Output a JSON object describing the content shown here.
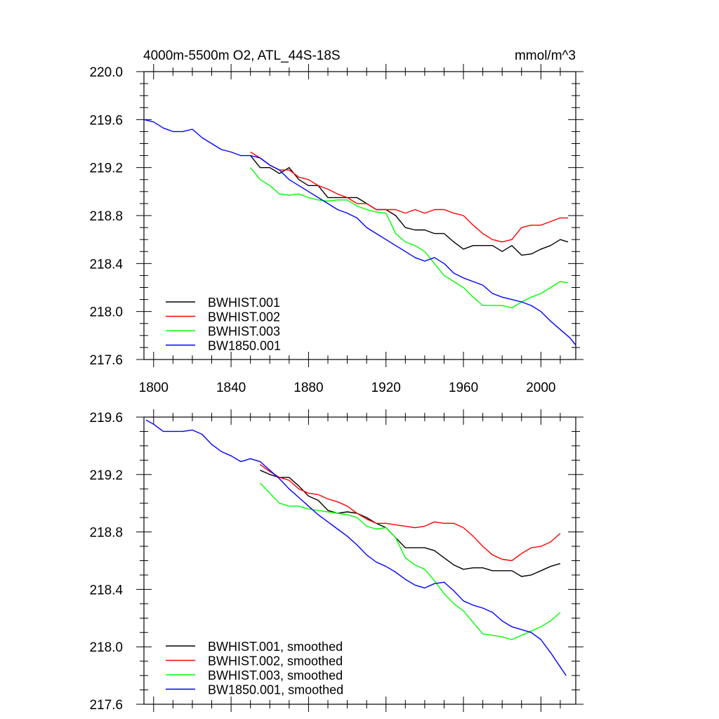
{
  "chart_data": [
    {
      "type": "line",
      "title": "4000m-5500m O2, ATL_44S-18S",
      "units": "mmol/m^3",
      "xlim": [
        1795,
        2018
      ],
      "ylim": [
        217.6,
        220.0
      ],
      "xticks": [
        "1800",
        "1840",
        "1880",
        "1920",
        "1960",
        "2000"
      ],
      "yticks": [
        "220.0",
        "219.6",
        "219.2",
        "218.8",
        "218.4",
        "218.0",
        "217.6"
      ],
      "legend_position": "bottom-left",
      "series": [
        {
          "name": "BWHIST.001",
          "color": "#000000",
          "x": [
            1850,
            1855,
            1860,
            1865,
            1870,
            1875,
            1880,
            1885,
            1890,
            1895,
            1900,
            1905,
            1910,
            1915,
            1920,
            1925,
            1930,
            1935,
            1940,
            1945,
            1950,
            1955,
            1960,
            1965,
            1970,
            1975,
            1980,
            1985,
            1990,
            1995,
            2000,
            2005,
            2010,
            2014
          ],
          "y": [
            219.3,
            219.2,
            219.2,
            219.15,
            219.2,
            219.1,
            219.05,
            219.05,
            218.95,
            218.95,
            218.95,
            218.95,
            218.9,
            218.85,
            218.85,
            218.8,
            218.7,
            218.68,
            218.68,
            218.65,
            218.65,
            218.58,
            218.52,
            218.55,
            218.55,
            218.55,
            218.5,
            218.55,
            218.47,
            218.48,
            218.52,
            218.55,
            218.6,
            218.58
          ]
        },
        {
          "name": "BWHIST.002",
          "color": "#ff0000",
          "x": [
            1850,
            1855,
            1860,
            1865,
            1870,
            1875,
            1880,
            1885,
            1890,
            1895,
            1900,
            1905,
            1910,
            1915,
            1920,
            1925,
            1930,
            1935,
            1940,
            1945,
            1950,
            1955,
            1960,
            1965,
            1970,
            1975,
            1980,
            1985,
            1990,
            1995,
            2000,
            2005,
            2010,
            2014
          ],
          "y": [
            219.33,
            219.28,
            219.22,
            219.18,
            219.18,
            219.12,
            219.1,
            219.05,
            219.02,
            218.98,
            218.95,
            218.9,
            218.9,
            218.85,
            218.85,
            218.85,
            218.82,
            218.85,
            218.82,
            218.85,
            218.85,
            218.82,
            218.8,
            218.72,
            218.65,
            218.6,
            218.58,
            218.6,
            218.7,
            218.72,
            218.72,
            218.75,
            218.78,
            218.78
          ]
        },
        {
          "name": "BWHIST.003",
          "color": "#00ff00",
          "x": [
            1850,
            1855,
            1860,
            1865,
            1870,
            1875,
            1880,
            1885,
            1890,
            1895,
            1900,
            1905,
            1910,
            1915,
            1920,
            1925,
            1930,
            1935,
            1940,
            1945,
            1950,
            1955,
            1960,
            1965,
            1970,
            1975,
            1980,
            1985,
            1990,
            1995,
            2000,
            2005,
            2010,
            2014
          ],
          "y": [
            219.2,
            219.1,
            219.05,
            218.98,
            218.97,
            218.98,
            218.95,
            218.93,
            218.92,
            218.93,
            218.93,
            218.88,
            218.85,
            218.83,
            218.82,
            218.65,
            218.58,
            218.55,
            218.5,
            218.4,
            218.3,
            218.25,
            218.2,
            218.12,
            218.05,
            218.05,
            218.05,
            218.03,
            218.08,
            218.12,
            218.15,
            218.2,
            218.25,
            218.24
          ]
        },
        {
          "name": "BW1850.001",
          "color": "#0000ff",
          "x": [
            1795,
            1800,
            1805,
            1810,
            1815,
            1820,
            1825,
            1830,
            1835,
            1840,
            1845,
            1850,
            1855,
            1860,
            1865,
            1870,
            1875,
            1880,
            1885,
            1890,
            1895,
            1900,
            1905,
            1910,
            1915,
            1920,
            1925,
            1930,
            1935,
            1940,
            1945,
            1950,
            1955,
            1960,
            1965,
            1970,
            1975,
            1980,
            1985,
            1990,
            1995,
            2000,
            2005,
            2010,
            2015,
            2018
          ],
          "y": [
            219.6,
            219.58,
            219.53,
            219.5,
            219.5,
            219.52,
            219.45,
            219.4,
            219.35,
            219.33,
            219.3,
            219.3,
            219.28,
            219.22,
            219.18,
            219.1,
            219.05,
            219.0,
            218.95,
            218.9,
            218.85,
            218.82,
            218.78,
            218.7,
            218.65,
            218.6,
            218.55,
            218.5,
            218.45,
            218.42,
            218.45,
            218.4,
            218.32,
            218.28,
            218.25,
            218.22,
            218.15,
            218.12,
            218.1,
            218.08,
            218.05,
            218.0,
            217.92,
            217.85,
            217.78,
            217.72
          ]
        }
      ]
    },
    {
      "type": "line",
      "xlim": [
        1795,
        2018
      ],
      "ylim": [
        217.6,
        219.6
      ],
      "yticks": [
        "219.6",
        "219.2",
        "218.8",
        "218.4",
        "218.0",
        "217.6"
      ],
      "legend_position": "bottom-left",
      "series": [
        {
          "name": "BWHIST.001, smoothed",
          "color": "#000000",
          "x": [
            1855,
            1860,
            1865,
            1870,
            1875,
            1880,
            1885,
            1890,
            1895,
            1900,
            1905,
            1910,
            1915,
            1920,
            1925,
            1930,
            1935,
            1940,
            1945,
            1950,
            1955,
            1960,
            1965,
            1970,
            1975,
            1980,
            1985,
            1990,
            1995,
            2000,
            2005,
            2010
          ],
          "y": [
            219.23,
            219.2,
            219.18,
            219.18,
            219.12,
            219.05,
            219.02,
            218.95,
            218.93,
            218.94,
            218.93,
            218.9,
            218.86,
            218.83,
            218.76,
            218.69,
            218.69,
            218.69,
            218.67,
            218.62,
            218.57,
            218.54,
            218.55,
            218.55,
            218.53,
            218.53,
            218.53,
            218.49,
            218.5,
            218.53,
            218.56,
            218.58
          ]
        },
        {
          "name": "BWHIST.002, smoothed",
          "color": "#ff0000",
          "x": [
            1855,
            1860,
            1865,
            1870,
            1875,
            1880,
            1885,
            1890,
            1895,
            1900,
            1905,
            1910,
            1915,
            1920,
            1925,
            1930,
            1935,
            1940,
            1945,
            1950,
            1955,
            1960,
            1965,
            1970,
            1975,
            1980,
            1985,
            1990,
            1995,
            2000,
            2005,
            2010
          ],
          "y": [
            219.27,
            219.22,
            219.18,
            219.16,
            219.1,
            219.07,
            219.06,
            219.03,
            219.01,
            218.98,
            218.93,
            218.89,
            218.86,
            218.86,
            218.85,
            218.84,
            218.83,
            218.84,
            218.87,
            218.86,
            218.86,
            218.83,
            218.77,
            218.7,
            218.64,
            218.61,
            218.6,
            218.65,
            218.69,
            218.7,
            218.73,
            218.79
          ]
        },
        {
          "name": "BWHIST.003, smoothed",
          "color": "#00ff00",
          "x": [
            1855,
            1860,
            1865,
            1870,
            1875,
            1880,
            1885,
            1890,
            1895,
            1900,
            1905,
            1910,
            1915,
            1920,
            1925,
            1930,
            1935,
            1940,
            1945,
            1950,
            1955,
            1960,
            1965,
            1970,
            1975,
            1980,
            1985,
            1990,
            1995,
            2000,
            2005,
            2010
          ],
          "y": [
            219.14,
            219.07,
            219.0,
            218.98,
            218.98,
            218.96,
            218.95,
            218.94,
            218.93,
            218.92,
            218.9,
            218.84,
            218.82,
            218.83,
            218.76,
            218.62,
            218.57,
            218.54,
            218.46,
            218.37,
            218.3,
            218.25,
            218.17,
            218.09,
            218.08,
            218.07,
            218.05,
            218.08,
            218.11,
            218.14,
            218.18,
            218.24
          ]
        },
        {
          "name": "BW1850.001, smoothed",
          "color": "#0000ff",
          "x": [
            1796,
            1800,
            1805,
            1810,
            1815,
            1820,
            1825,
            1830,
            1835,
            1840,
            1845,
            1850,
            1855,
            1860,
            1865,
            1870,
            1875,
            1880,
            1885,
            1890,
            1895,
            1900,
            1905,
            1910,
            1915,
            1920,
            1925,
            1930,
            1935,
            1940,
            1945,
            1950,
            1955,
            1960,
            1965,
            1970,
            1975,
            1980,
            1985,
            1990,
            1995,
            2000,
            2005,
            2010,
            2013
          ],
          "y": [
            219.58,
            219.55,
            219.5,
            219.5,
            219.5,
            219.51,
            219.48,
            219.41,
            219.36,
            219.33,
            219.29,
            219.31,
            219.29,
            219.23,
            219.17,
            219.1,
            219.04,
            218.98,
            218.92,
            218.87,
            218.82,
            218.77,
            218.71,
            218.64,
            218.59,
            218.56,
            218.52,
            218.47,
            218.43,
            218.41,
            218.44,
            218.45,
            218.39,
            218.32,
            218.29,
            218.27,
            218.24,
            218.18,
            218.14,
            218.12,
            218.1,
            218.05,
            217.96,
            217.86,
            217.8
          ]
        }
      ]
    }
  ]
}
